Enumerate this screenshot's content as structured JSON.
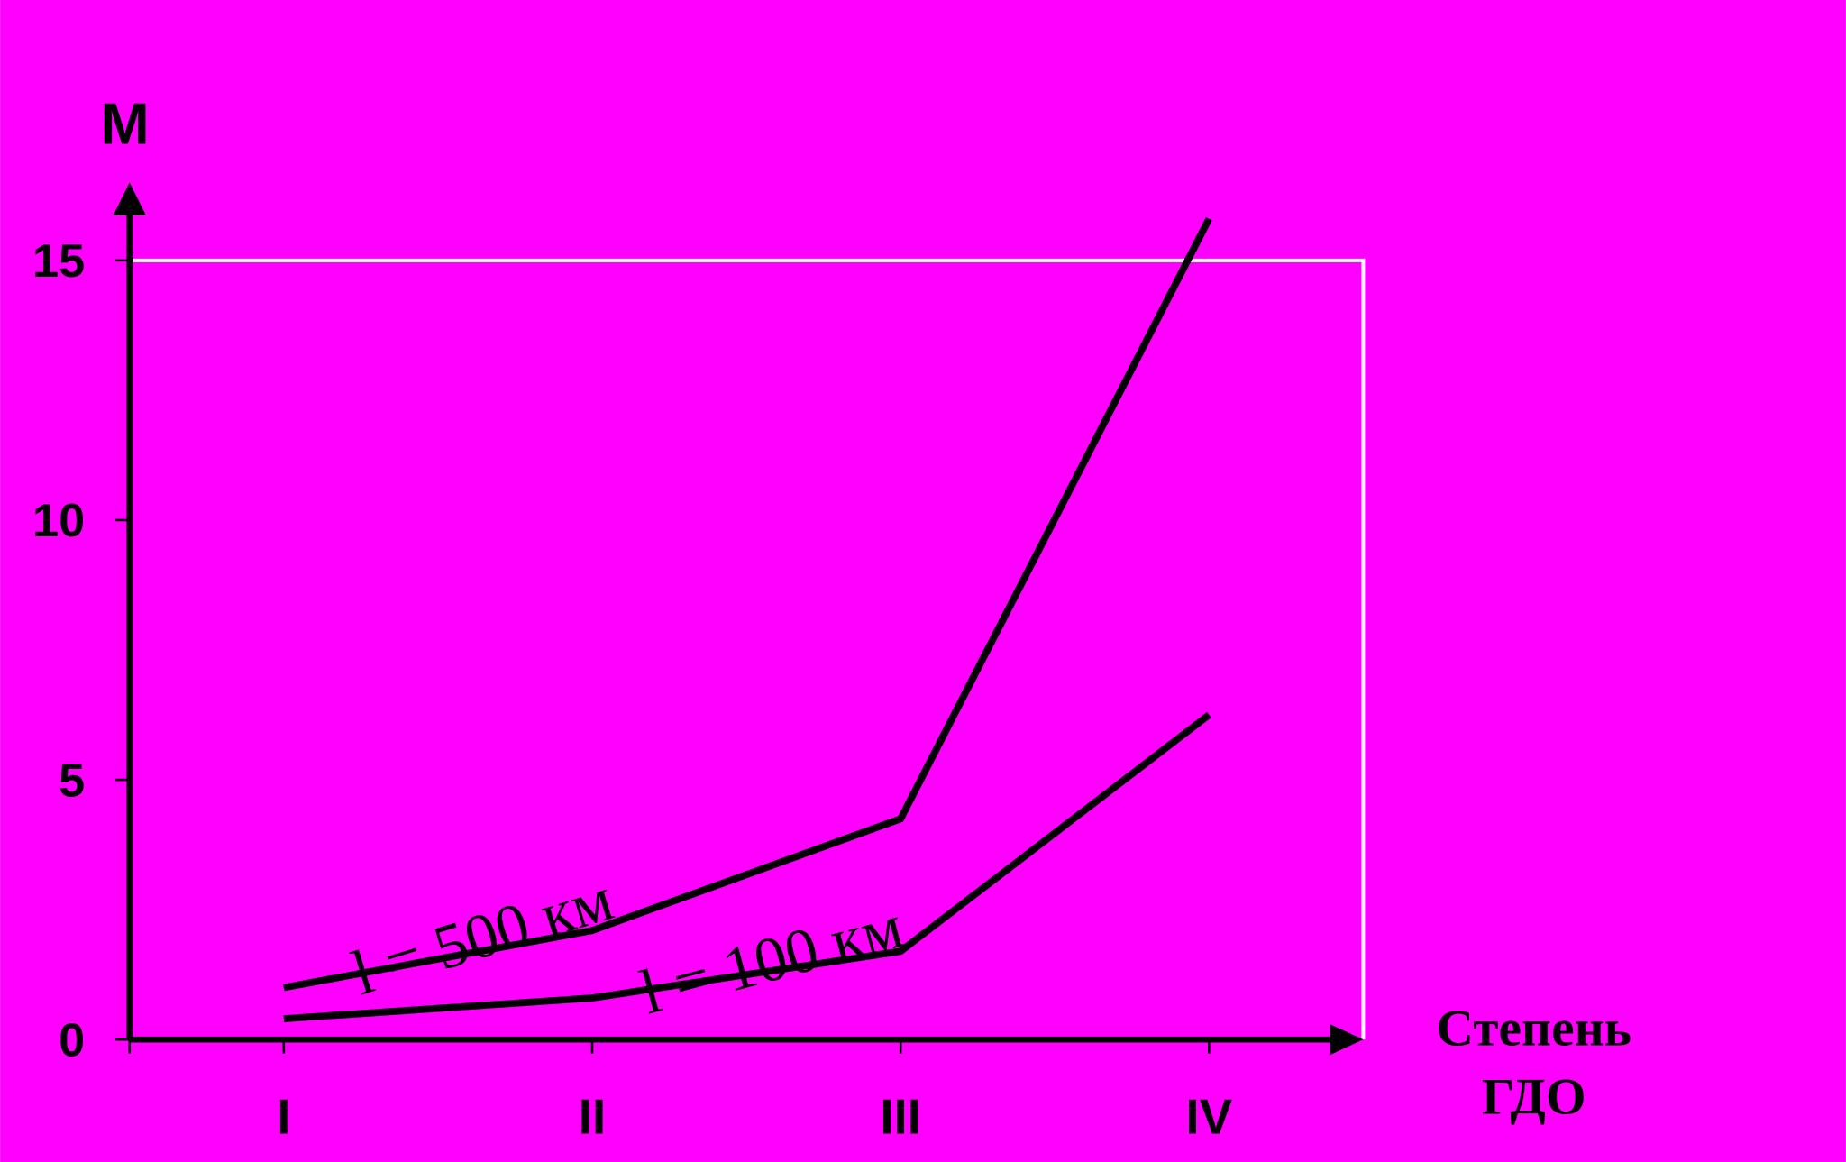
{
  "chart_data": {
    "type": "line",
    "ylabel": "М",
    "xlabel": [
      "Степень",
      "ГДО"
    ],
    "categories": [
      "I",
      "II",
      "III",
      "IV"
    ],
    "series": [
      {
        "name": "l = 500 км",
        "color": "#000000",
        "values": [
          1.0,
          2.1,
          4.25,
          15.8
        ]
      },
      {
        "name": "l = 100 км",
        "color": "#000000",
        "values": [
          0.4,
          0.8,
          1.7,
          6.25
        ]
      }
    ],
    "ylim": [
      0,
      16.5
    ],
    "yticks": [
      0,
      5,
      10,
      15
    ],
    "background": "#ff00ff",
    "frame_color": "#ffffff"
  }
}
